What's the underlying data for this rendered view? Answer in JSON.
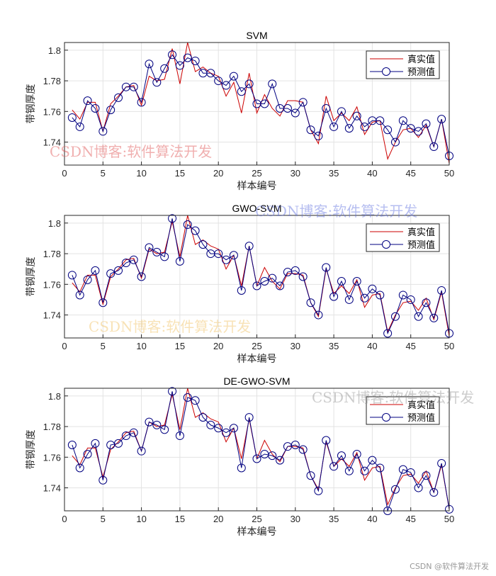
{
  "chart_data": [
    {
      "type": "line",
      "title": "SVM",
      "xlabel": "样本编号",
      "ylabel": "带钢厚度",
      "xlim": [
        0,
        50
      ],
      "ylim": [
        1.725,
        1.805
      ],
      "xticks": [
        0,
        5,
        10,
        15,
        20,
        25,
        30,
        35,
        40,
        45,
        50
      ],
      "yticks": [
        1.74,
        1.76,
        1.78,
        1.8
      ],
      "grid": true,
      "legend": "top-right",
      "series": [
        {
          "name": "真实值",
          "color": "#cc0000",
          "marker": "none",
          "values": [
            1.761,
            1.755,
            1.766,
            1.766,
            1.747,
            1.765,
            1.77,
            1.776,
            1.777,
            1.764,
            1.783,
            1.78,
            1.781,
            1.801,
            1.778,
            1.805,
            1.786,
            1.789,
            1.785,
            1.783,
            1.77,
            1.779,
            1.759,
            1.785,
            1.759,
            1.771,
            1.762,
            1.757,
            1.767,
            1.767,
            1.766,
            1.748,
            1.739,
            1.77,
            1.754,
            1.759,
            1.754,
            1.763,
            1.745,
            1.753,
            1.754,
            1.729,
            1.74,
            1.748,
            1.749,
            1.743,
            1.751,
            1.737,
            1.755,
            1.726
          ]
        },
        {
          "name": "预测值",
          "color": "#000080",
          "marker": "circle",
          "values": [
            1.756,
            1.75,
            1.767,
            1.762,
            1.747,
            1.761,
            1.769,
            1.776,
            1.776,
            1.766,
            1.791,
            1.779,
            1.788,
            1.797,
            1.79,
            1.795,
            1.793,
            1.785,
            1.785,
            1.78,
            1.777,
            1.783,
            1.773,
            1.778,
            1.765,
            1.765,
            1.778,
            1.762,
            1.762,
            1.759,
            1.766,
            1.748,
            1.744,
            1.762,
            1.75,
            1.76,
            1.749,
            1.757,
            1.75,
            1.754,
            1.754,
            1.748,
            1.74,
            1.754,
            1.749,
            1.747,
            1.752,
            1.737,
            1.755,
            1.731
          ]
        }
      ]
    },
    {
      "type": "line",
      "title": "GWO-SVM",
      "xlabel": "样本编号",
      "ylabel": "带钢厚度",
      "xlim": [
        0,
        50
      ],
      "ylim": [
        1.725,
        1.805
      ],
      "xticks": [
        0,
        5,
        10,
        15,
        20,
        25,
        30,
        35,
        40,
        45,
        50
      ],
      "yticks": [
        1.74,
        1.76,
        1.78,
        1.8
      ],
      "grid": true,
      "legend": "top-right",
      "series": [
        {
          "name": "真实值",
          "color": "#cc0000",
          "marker": "none",
          "values": [
            1.761,
            1.755,
            1.766,
            1.766,
            1.747,
            1.765,
            1.77,
            1.776,
            1.777,
            1.764,
            1.783,
            1.78,
            1.781,
            1.801,
            1.778,
            1.805,
            1.786,
            1.789,
            1.785,
            1.783,
            1.77,
            1.779,
            1.759,
            1.785,
            1.759,
            1.771,
            1.762,
            1.757,
            1.767,
            1.767,
            1.766,
            1.748,
            1.739,
            1.77,
            1.754,
            1.759,
            1.754,
            1.763,
            1.745,
            1.753,
            1.754,
            1.729,
            1.74,
            1.748,
            1.749,
            1.743,
            1.751,
            1.737,
            1.755,
            1.726
          ]
        },
        {
          "name": "预测值",
          "color": "#000080",
          "marker": "circle",
          "values": [
            1.766,
            1.753,
            1.763,
            1.769,
            1.748,
            1.767,
            1.769,
            1.774,
            1.776,
            1.765,
            1.784,
            1.781,
            1.778,
            1.803,
            1.775,
            1.799,
            1.795,
            1.786,
            1.78,
            1.78,
            1.776,
            1.779,
            1.756,
            1.785,
            1.759,
            1.762,
            1.764,
            1.759,
            1.768,
            1.769,
            1.765,
            1.748,
            1.74,
            1.771,
            1.752,
            1.762,
            1.75,
            1.762,
            1.751,
            1.757,
            1.753,
            1.728,
            1.739,
            1.753,
            1.75,
            1.739,
            1.748,
            1.738,
            1.756,
            1.728
          ]
        }
      ]
    },
    {
      "type": "line",
      "title": "DE-GWO-SVM",
      "xlabel": "样本编号",
      "ylabel": "带钢厚度",
      "xlim": [
        0,
        50
      ],
      "ylim": [
        1.725,
        1.805
      ],
      "xticks": [
        0,
        5,
        10,
        15,
        20,
        25,
        30,
        35,
        40,
        45,
        50
      ],
      "yticks": [
        1.74,
        1.76,
        1.78,
        1.8
      ],
      "grid": true,
      "legend": "top-right",
      "series": [
        {
          "name": "真实值",
          "color": "#cc0000",
          "marker": "none",
          "values": [
            1.761,
            1.755,
            1.766,
            1.766,
            1.747,
            1.765,
            1.77,
            1.776,
            1.777,
            1.764,
            1.783,
            1.78,
            1.781,
            1.801,
            1.778,
            1.805,
            1.786,
            1.789,
            1.785,
            1.783,
            1.77,
            1.779,
            1.759,
            1.785,
            1.759,
            1.771,
            1.762,
            1.757,
            1.767,
            1.767,
            1.766,
            1.748,
            1.739,
            1.77,
            1.754,
            1.759,
            1.754,
            1.763,
            1.745,
            1.753,
            1.754,
            1.729,
            1.74,
            1.748,
            1.749,
            1.743,
            1.751,
            1.737,
            1.755,
            1.726
          ]
        },
        {
          "name": "预测值",
          "color": "#000080",
          "marker": "circle",
          "values": [
            1.768,
            1.753,
            1.762,
            1.769,
            1.745,
            1.768,
            1.769,
            1.774,
            1.776,
            1.764,
            1.783,
            1.781,
            1.778,
            1.803,
            1.774,
            1.799,
            1.797,
            1.786,
            1.781,
            1.779,
            1.776,
            1.779,
            1.753,
            1.786,
            1.759,
            1.762,
            1.761,
            1.758,
            1.767,
            1.768,
            1.765,
            1.748,
            1.738,
            1.771,
            1.754,
            1.761,
            1.751,
            1.762,
            1.751,
            1.758,
            1.753,
            1.725,
            1.739,
            1.752,
            1.75,
            1.74,
            1.748,
            1.737,
            1.756,
            1.726
          ]
        }
      ]
    }
  ],
  "watermarks": [
    "CSDN博客:软件算法开发",
    "CSDN博客:软件算法开发",
    "CSDN博客:软件算法开发",
    "CSDN博客:软件算法开发"
  ],
  "watermark_colors": [
    "#e05050",
    "#6070e0",
    "#f0c060",
    "#909090"
  ],
  "credit": "CSDN @软件算法开发"
}
